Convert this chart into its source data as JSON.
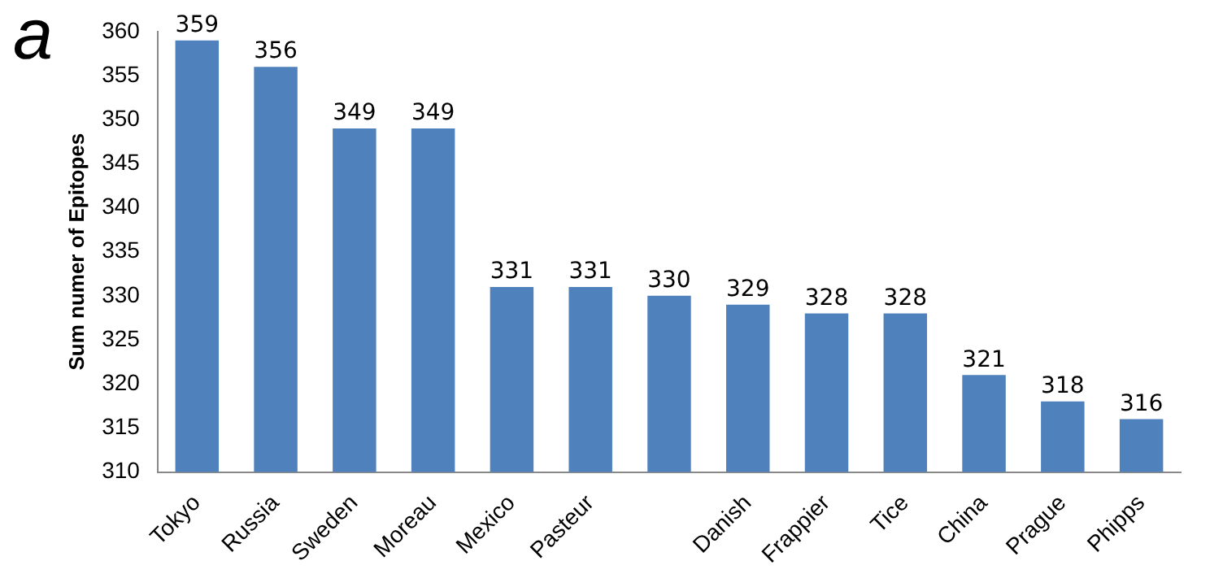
{
  "chart_data": {
    "type": "bar",
    "title": "a",
    "ylabel": "Sum numer of Epitopes",
    "categories": [
      "Tokyo",
      "Russia",
      "Sweden",
      "Moreau",
      "Mexico",
      "Pasteur",
      null,
      "Danish",
      "Frappier",
      "Tice",
      "China",
      "Prague",
      "Phipps"
    ],
    "values": [
      359,
      356,
      349,
      349,
      331,
      331,
      330,
      329,
      328,
      328,
      321,
      318,
      316
    ],
    "color": "#4f81bd",
    "ylim": [
      310,
      360
    ],
    "yticks": [
      310,
      315,
      320,
      325,
      330,
      335,
      340,
      345,
      350,
      355,
      360
    ],
    "grid": false,
    "data_labels": true
  }
}
